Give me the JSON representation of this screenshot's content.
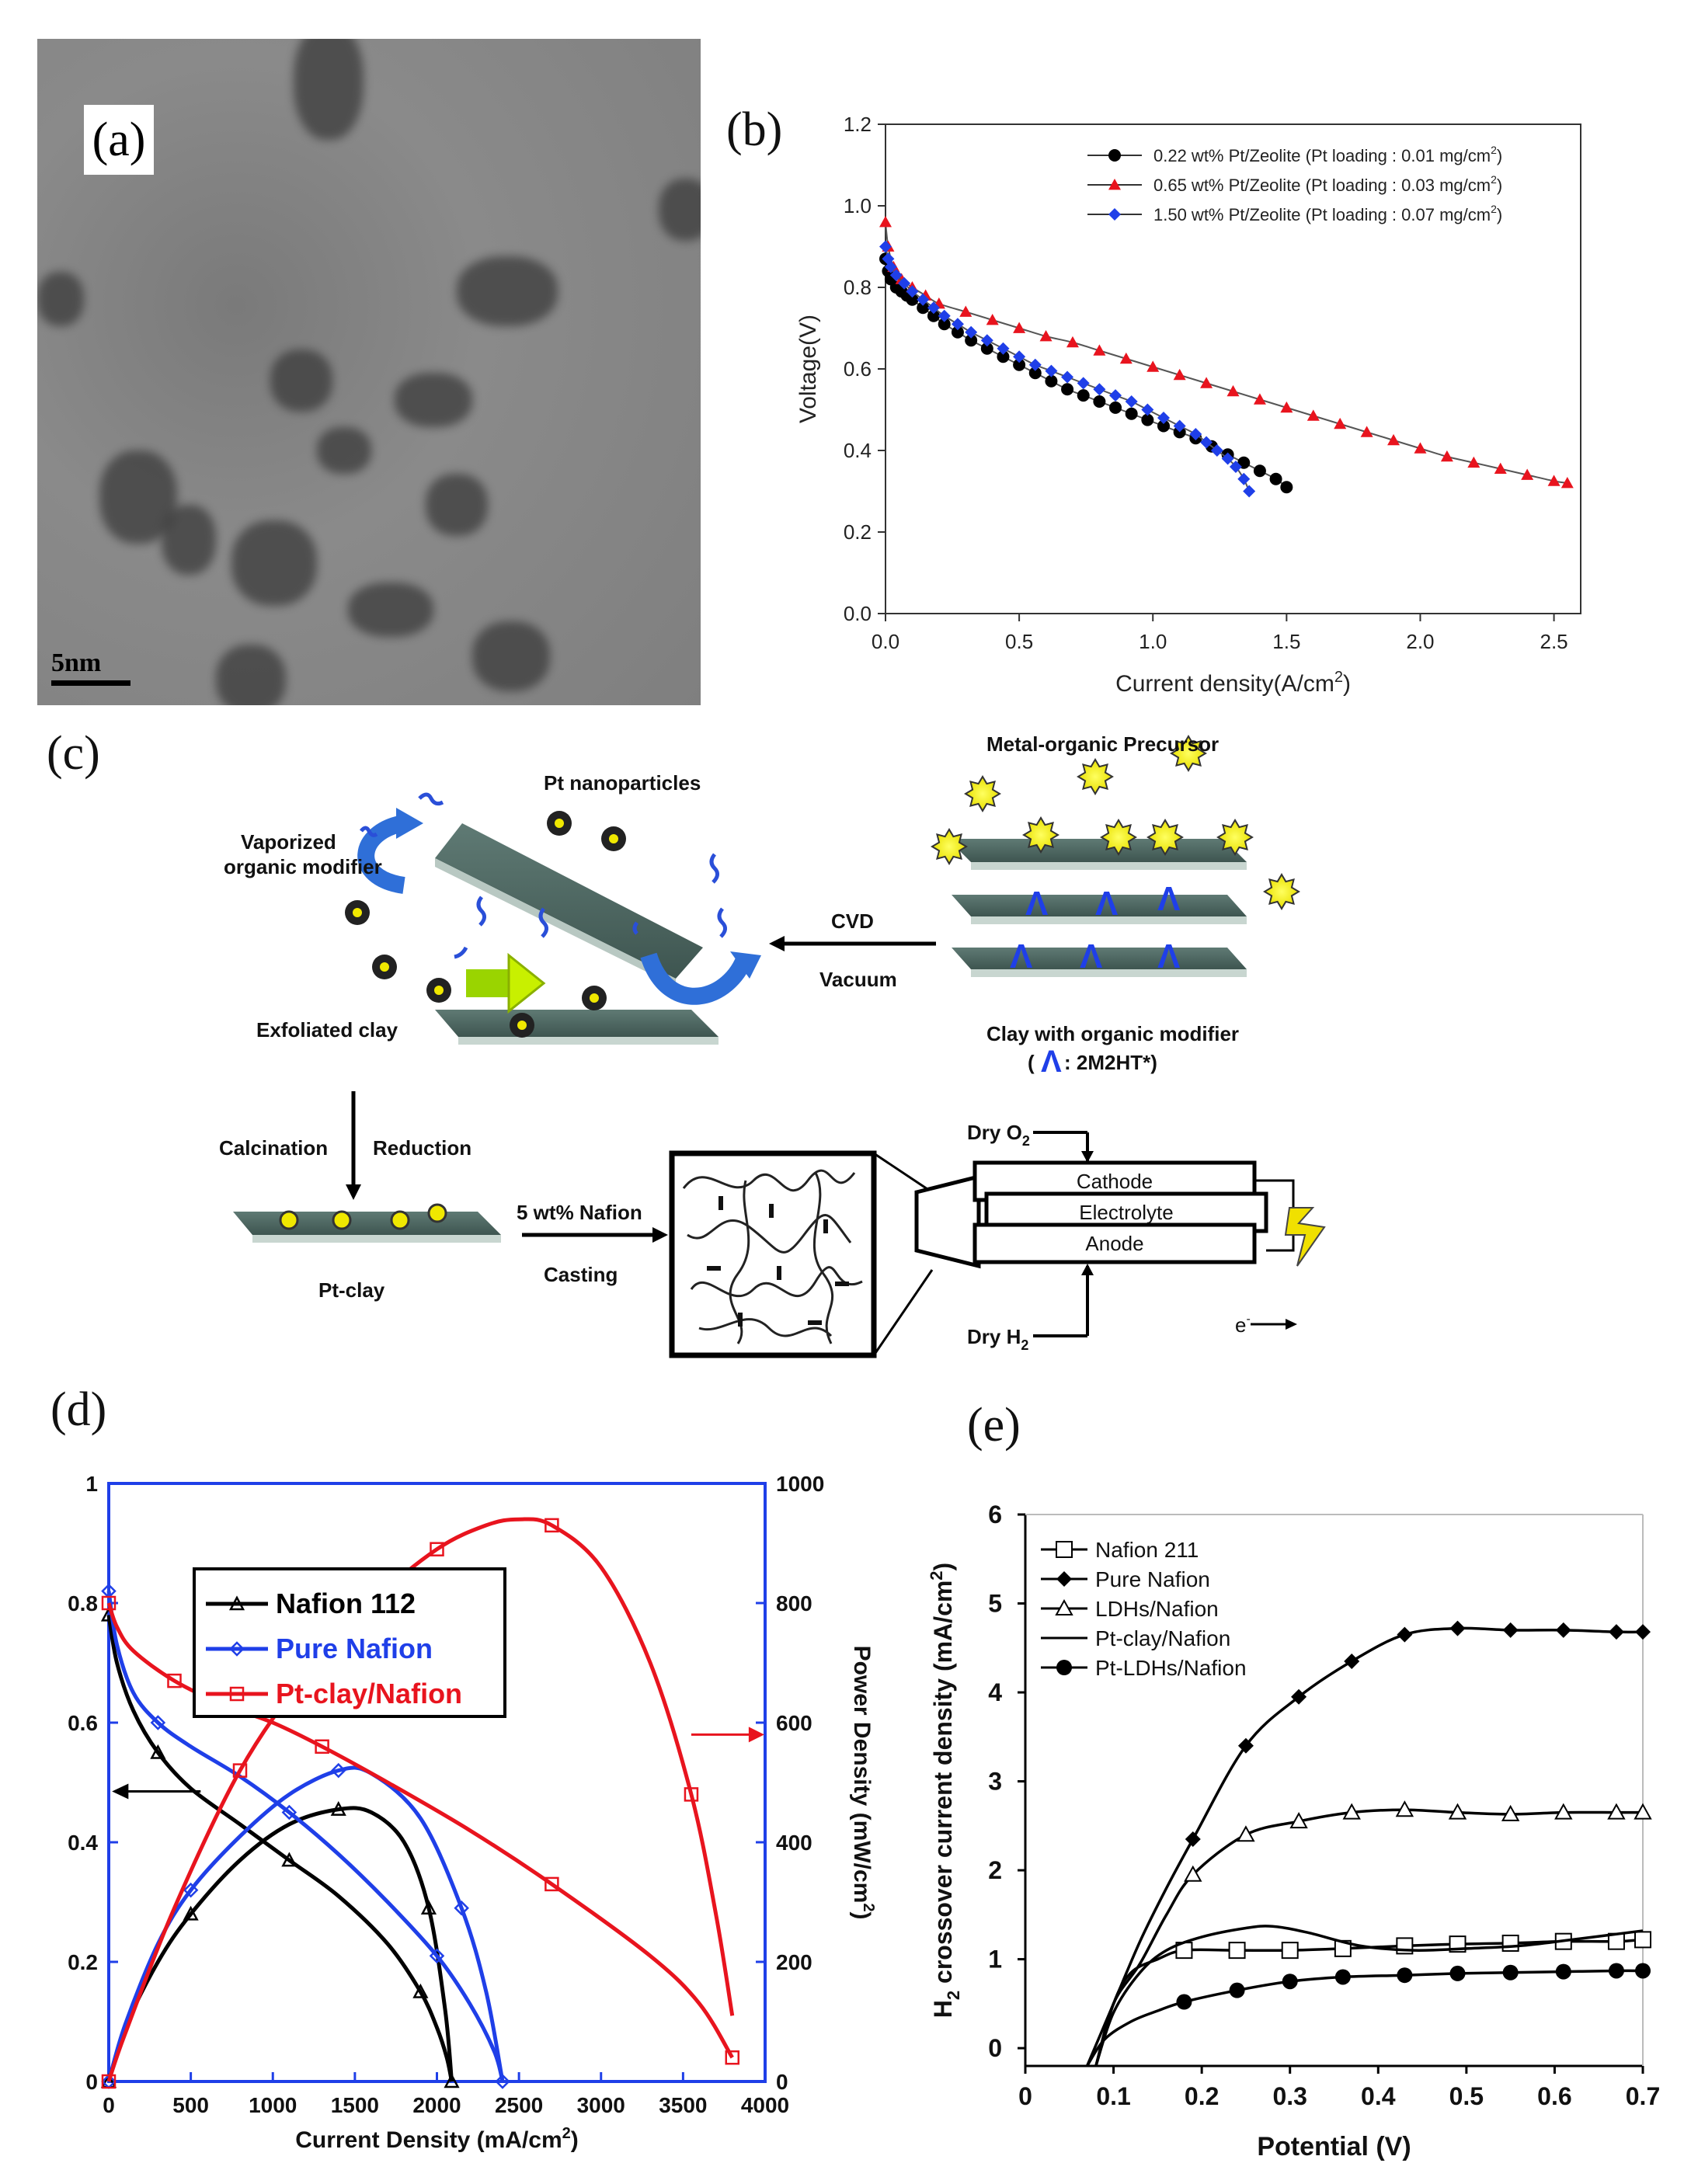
{
  "panels": {
    "a": {
      "letter": "(a)",
      "scale_bar": "5nm"
    },
    "b": {
      "letter": "(b)"
    },
    "c": {
      "letter": "(c)"
    },
    "d": {
      "letter": "(d)"
    },
    "e": {
      "letter": "(e)"
    }
  },
  "schematic": {
    "pt_nanoparticles": "Pt nanoparticles",
    "vaporized_line1": "Vaporized",
    "vaporized_line2": "organic modifier",
    "metal_organic": "Metal-organic Precursor",
    "cvd": "CVD",
    "vacuum": "Vacuum",
    "exfoliated": "Exfoliated clay",
    "clay_modifier": "Clay with organic modifier",
    "modifier_key": ": 2M2HT*)",
    "modifier_paren": "(",
    "calcination": "Calcination",
    "reduction": "Reduction",
    "pt_clay": "Pt-clay",
    "nafion_5": "5 wt% Nafion",
    "casting": "Casting",
    "dry_o2": "Dry O",
    "dry_o2_sub": "2",
    "dry_h2": "Dry H",
    "dry_h2_sub": "2",
    "cathode": "Cathode",
    "electrolyte": "Electrolyte",
    "anode": "Anode",
    "electron": "e",
    "electron_sup": "-"
  },
  "chart_data": [
    {
      "id": "b",
      "type": "line",
      "xlabel": "Current density(A/cm",
      "xlabel_sup": "2",
      "xlabel_end": ")",
      "ylabel": "Voltage(V)",
      "xlim": [
        0,
        2.6
      ],
      "ylim": [
        0,
        1.2
      ],
      "xticks": [
        "0.0",
        "0.5",
        "1.0",
        "1.5",
        "2.0",
        "2.5"
      ],
      "yticks": [
        "0.0",
        "0.2",
        "0.4",
        "0.6",
        "0.8",
        "1.0",
        "1.2"
      ],
      "series": [
        {
          "name": "0.22 wt% Pt/Zeolite (Pt loading : 0.01 mg/cm",
          "sup": "2",
          "end": ")",
          "color": "#000000",
          "marker": "circle",
          "x": [
            0,
            0.01,
            0.02,
            0.04,
            0.06,
            0.08,
            0.1,
            0.14,
            0.18,
            0.22,
            0.27,
            0.32,
            0.38,
            0.44,
            0.5,
            0.56,
            0.62,
            0.68,
            0.74,
            0.8,
            0.86,
            0.92,
            0.98,
            1.04,
            1.1,
            1.16,
            1.22,
            1.28,
            1.34,
            1.4,
            1.46,
            1.5
          ],
          "y": [
            0.87,
            0.84,
            0.82,
            0.8,
            0.79,
            0.78,
            0.77,
            0.75,
            0.73,
            0.71,
            0.69,
            0.67,
            0.65,
            0.63,
            0.61,
            0.59,
            0.57,
            0.55,
            0.535,
            0.52,
            0.505,
            0.49,
            0.475,
            0.46,
            0.445,
            0.43,
            0.41,
            0.39,
            0.37,
            0.35,
            0.33,
            0.31
          ]
        },
        {
          "name": "0.65 wt% Pt/Zeolite (Pt loading : 0.03 mg/cm",
          "sup": "2",
          "end": ")",
          "color": "#e8141e",
          "marker": "triangle",
          "x": [
            0,
            0.01,
            0.03,
            0.06,
            0.1,
            0.15,
            0.2,
            0.3,
            0.4,
            0.5,
            0.6,
            0.7,
            0.8,
            0.9,
            1.0,
            1.1,
            1.2,
            1.3,
            1.4,
            1.5,
            1.6,
            1.7,
            1.8,
            1.9,
            2.0,
            2.1,
            2.2,
            2.3,
            2.4,
            2.5,
            2.55
          ],
          "y": [
            0.96,
            0.9,
            0.85,
            0.82,
            0.8,
            0.78,
            0.76,
            0.74,
            0.72,
            0.7,
            0.68,
            0.665,
            0.645,
            0.625,
            0.605,
            0.585,
            0.565,
            0.545,
            0.525,
            0.505,
            0.485,
            0.465,
            0.445,
            0.425,
            0.405,
            0.385,
            0.37,
            0.355,
            0.34,
            0.325,
            0.32
          ]
        },
        {
          "name": "1.50 wt% Pt/Zeolite (Pt loading : 0.07 mg/cm",
          "sup": "2",
          "end": ")",
          "color": "#1f3fe8",
          "marker": "diamond",
          "x": [
            0,
            0.01,
            0.02,
            0.04,
            0.07,
            0.1,
            0.14,
            0.18,
            0.22,
            0.27,
            0.32,
            0.38,
            0.44,
            0.5,
            0.56,
            0.62,
            0.68,
            0.74,
            0.8,
            0.86,
            0.92,
            0.98,
            1.04,
            1.1,
            1.16,
            1.2,
            1.24,
            1.28,
            1.31,
            1.34,
            1.36
          ],
          "y": [
            0.9,
            0.87,
            0.85,
            0.83,
            0.81,
            0.79,
            0.77,
            0.75,
            0.73,
            0.71,
            0.69,
            0.67,
            0.65,
            0.63,
            0.61,
            0.595,
            0.58,
            0.565,
            0.55,
            0.535,
            0.52,
            0.5,
            0.48,
            0.46,
            0.44,
            0.42,
            0.4,
            0.38,
            0.36,
            0.33,
            0.3
          ]
        }
      ]
    },
    {
      "id": "d",
      "type": "line",
      "xlabel": "Current Density (mA/cm",
      "xlabel_sup": "2",
      "xlabel_end": ")",
      "y2label": "Power Density (mW/cm",
      "y2label_sup": "2",
      "y2label_end": ")",
      "xlim": [
        0,
        4000
      ],
      "ylim": [
        0,
        1
      ],
      "y2lim": [
        0,
        1000
      ],
      "xticks": [
        "0",
        "500",
        "1000",
        "1500",
        "2000",
        "2500",
        "3000",
        "3500",
        "4000"
      ],
      "yticks": [
        "0",
        "0.2",
        "0.4",
        "0.6",
        "0.8",
        "1"
      ],
      "y2ticks": [
        "0",
        "200",
        "400",
        "600",
        "800",
        "1000"
      ],
      "series": [
        {
          "name": "Nafion 112",
          "color": "#000000",
          "marker": "triangle",
          "voltage": {
            "x": [
              0,
              50,
              150,
              300,
              500,
              800,
              1100,
              1400,
              1700,
              1900,
              2000,
              2060,
              2090
            ],
            "y": [
              0.78,
              0.7,
              0.62,
              0.55,
              0.49,
              0.43,
              0.37,
              0.31,
              0.23,
              0.15,
              0.09,
              0.04,
              0
            ]
          },
          "power": {
            "x": [
              0,
              100,
              300,
              500,
              800,
              1100,
              1400,
              1600,
              1800,
              1950,
              2050,
              2090
            ],
            "y": [
              0,
              90,
              200,
              280,
              370,
              430,
              455,
              450,
              400,
              290,
              120,
              0
            ]
          }
        },
        {
          "name": "Pure Nafion",
          "color": "#1f3fe8",
          "marker": "diamond",
          "voltage": {
            "x": [
              0,
              50,
              150,
              300,
              500,
              800,
              1100,
              1400,
              1700,
              2000,
              2200,
              2350,
              2400
            ],
            "y": [
              0.82,
              0.73,
              0.65,
              0.6,
              0.56,
              0.51,
              0.45,
              0.38,
              0.3,
              0.21,
              0.13,
              0.05,
              0
            ]
          },
          "power": {
            "x": [
              0,
              100,
              300,
              500,
              800,
              1100,
              1400,
              1600,
              1900,
              2150,
              2300,
              2400
            ],
            "y": [
              0,
              95,
              230,
              320,
              410,
              480,
              520,
              515,
              440,
              290,
              150,
              0
            ]
          }
        },
        {
          "name": "Pt-clay/Nafion",
          "color": "#e8141e",
          "marker": "square",
          "voltage": {
            "x": [
              0,
              50,
              150,
              400,
              700,
              1000,
              1300,
              1700,
              2200,
              2700,
              3300,
              3600,
              3800
            ],
            "y": [
              0.8,
              0.76,
              0.72,
              0.67,
              0.63,
              0.6,
              0.56,
              0.5,
              0.42,
              0.33,
              0.21,
              0.13,
              0.04
            ]
          },
          "power": {
            "x": [
              0,
              100,
              400,
              800,
              1200,
              1600,
              2000,
              2300,
              2500,
              2700,
              3000,
              3300,
              3550,
              3700,
              3800
            ],
            "y": [
              0,
              80,
              290,
              520,
              680,
              800,
              890,
              930,
              940,
              930,
              860,
              700,
              480,
              280,
              110
            ]
          }
        }
      ]
    },
    {
      "id": "e",
      "type": "line",
      "xlabel": "Potential (V)",
      "ylabel": "H",
      "ylabel_sub": "2",
      "ylabel_mid": " crossover current density (mA/cm",
      "ylabel_sup": "2",
      "ylabel_end": ")",
      "xlim": [
        0,
        0.7
      ],
      "ylim": [
        -0.2,
        6
      ],
      "xticks": [
        "0",
        "0.1",
        "0.2",
        "0.3",
        "0.4",
        "0.5",
        "0.6",
        "0.7"
      ],
      "yticks": [
        "0",
        "1",
        "2",
        "3",
        "4",
        "5",
        "6"
      ],
      "series": [
        {
          "name": "Nafion 211",
          "marker": "open-square",
          "x": [
            0.08,
            0.1,
            0.12,
            0.15,
            0.18,
            0.24,
            0.3,
            0.36,
            0.43,
            0.49,
            0.55,
            0.61,
            0.67,
            0.7
          ],
          "y": [
            -0.2,
            0.5,
            0.85,
            1.0,
            1.1,
            1.1,
            1.1,
            1.12,
            1.15,
            1.17,
            1.18,
            1.2,
            1.2,
            1.22
          ]
        },
        {
          "name": "Pure Nafion",
          "marker": "filled-diamond",
          "x": [
            0.07,
            0.1,
            0.13,
            0.16,
            0.19,
            0.25,
            0.31,
            0.37,
            0.43,
            0.49,
            0.55,
            0.61,
            0.67,
            0.7
          ],
          "y": [
            -0.2,
            0.5,
            1.2,
            1.8,
            2.35,
            3.4,
            3.95,
            4.35,
            4.65,
            4.72,
            4.7,
            4.7,
            4.68,
            4.68
          ]
        },
        {
          "name": "LDHs/Nafion",
          "marker": "open-triangle",
          "x": [
            0.08,
            0.1,
            0.13,
            0.16,
            0.19,
            0.25,
            0.31,
            0.37,
            0.43,
            0.49,
            0.55,
            0.61,
            0.67,
            0.7
          ],
          "y": [
            -0.2,
            0.5,
            0.95,
            1.5,
            1.95,
            2.4,
            2.55,
            2.65,
            2.68,
            2.65,
            2.63,
            2.65,
            2.65,
            2.65
          ]
        },
        {
          "name": "Pt-clay/Nafion",
          "marker": "none",
          "x": [
            0.08,
            0.1,
            0.13,
            0.16,
            0.2,
            0.25,
            0.28,
            0.32,
            0.38,
            0.44,
            0.5,
            0.56,
            0.62,
            0.7
          ],
          "y": [
            -0.2,
            0.4,
            0.85,
            1.1,
            1.25,
            1.35,
            1.37,
            1.3,
            1.15,
            1.1,
            1.12,
            1.15,
            1.22,
            1.32
          ]
        },
        {
          "name": "Pt-LDHs/Nafion",
          "marker": "filled-circle",
          "x": [
            0.07,
            0.09,
            0.12,
            0.15,
            0.18,
            0.24,
            0.3,
            0.36,
            0.43,
            0.49,
            0.55,
            0.61,
            0.67,
            0.7
          ],
          "y": [
            -0.2,
            0.1,
            0.3,
            0.42,
            0.52,
            0.65,
            0.75,
            0.8,
            0.82,
            0.84,
            0.85,
            0.86,
            0.87,
            0.87
          ]
        }
      ]
    }
  ]
}
